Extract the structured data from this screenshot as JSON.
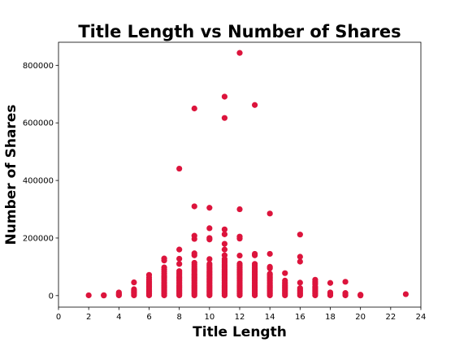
{
  "chart_data": {
    "type": "scatter",
    "title": "Title Length vs Number of Shares",
    "xlabel": "Title Length",
    "ylabel": "Number of Shares",
    "xlim": [
      0,
      24
    ],
    "ylim": [
      -40000,
      880000
    ],
    "xticks": [
      0,
      2,
      4,
      6,
      8,
      10,
      12,
      14,
      16,
      18,
      20,
      22,
      24
    ],
    "yticks": [
      0,
      200000,
      400000,
      600000,
      800000
    ],
    "xtick_labels": [
      "0",
      "2",
      "4",
      "6",
      "8",
      "10",
      "12",
      "14",
      "16",
      "18",
      "20",
      "22",
      "24"
    ],
    "ytick_labels": [
      "0",
      "200000",
      "400000",
      "600000",
      "800000"
    ],
    "grid": false,
    "marker_color": "#dc143c",
    "series": [
      {
        "points": [
          [
            2,
            1000
          ],
          [
            3,
            500
          ],
          [
            3,
            1500
          ],
          [
            4,
            1000
          ],
          [
            4,
            4000
          ],
          [
            4,
            7000
          ],
          [
            4,
            11000
          ],
          [
            5,
            1000
          ],
          [
            5,
            5000
          ],
          [
            5,
            9000
          ],
          [
            5,
            13000
          ],
          [
            5,
            17000
          ],
          [
            5,
            22000
          ],
          [
            5,
            46000
          ],
          [
            6,
            1000
          ],
          [
            6,
            6000
          ],
          [
            6,
            11000
          ],
          [
            6,
            16000
          ],
          [
            6,
            21000
          ],
          [
            6,
            27000
          ],
          [
            6,
            33000
          ],
          [
            6,
            40000
          ],
          [
            6,
            47000
          ],
          [
            6,
            55000
          ],
          [
            6,
            63000
          ],
          [
            6,
            72000
          ],
          [
            7,
            1000
          ],
          [
            7,
            6000
          ],
          [
            7,
            11000
          ],
          [
            7,
            16000
          ],
          [
            7,
            21000
          ],
          [
            7,
            26000
          ],
          [
            7,
            31000
          ],
          [
            7,
            36000
          ],
          [
            7,
            41000
          ],
          [
            7,
            46000
          ],
          [
            7,
            52000
          ],
          [
            7,
            58000
          ],
          [
            7,
            64000
          ],
          [
            7,
            70000
          ],
          [
            7,
            77000
          ],
          [
            7,
            84000
          ],
          [
            7,
            91000
          ],
          [
            7,
            98000
          ],
          [
            7,
            122000
          ],
          [
            7,
            129000
          ],
          [
            8,
            1000
          ],
          [
            8,
            6000
          ],
          [
            8,
            11000
          ],
          [
            8,
            16000
          ],
          [
            8,
            21000
          ],
          [
            8,
            26000
          ],
          [
            8,
            31000
          ],
          [
            8,
            36000
          ],
          [
            8,
            41000
          ],
          [
            8,
            46000
          ],
          [
            8,
            51000
          ],
          [
            8,
            56000
          ],
          [
            8,
            61000
          ],
          [
            8,
            66000
          ],
          [
            8,
            72000
          ],
          [
            8,
            78000
          ],
          [
            8,
            85000
          ],
          [
            8,
            110000
          ],
          [
            8,
            128000
          ],
          [
            8,
            160000
          ],
          [
            8,
            441000
          ],
          [
            9,
            1000
          ],
          [
            9,
            6000
          ],
          [
            9,
            11000
          ],
          [
            9,
            16000
          ],
          [
            9,
            21000
          ],
          [
            9,
            26000
          ],
          [
            9,
            31000
          ],
          [
            9,
            36000
          ],
          [
            9,
            41000
          ],
          [
            9,
            46000
          ],
          [
            9,
            51000
          ],
          [
            9,
            56000
          ],
          [
            9,
            61000
          ],
          [
            9,
            66000
          ],
          [
            9,
            71000
          ],
          [
            9,
            76000
          ],
          [
            9,
            82000
          ],
          [
            9,
            88000
          ],
          [
            9,
            94000
          ],
          [
            9,
            100000
          ],
          [
            9,
            107000
          ],
          [
            9,
            114000
          ],
          [
            9,
            140000
          ],
          [
            9,
            147000
          ],
          [
            9,
            197000
          ],
          [
            9,
            208000
          ],
          [
            9,
            310000
          ],
          [
            9,
            650000
          ],
          [
            10,
            1000
          ],
          [
            10,
            6000
          ],
          [
            10,
            11000
          ],
          [
            10,
            16000
          ],
          [
            10,
            21000
          ],
          [
            10,
            26000
          ],
          [
            10,
            31000
          ],
          [
            10,
            36000
          ],
          [
            10,
            41000
          ],
          [
            10,
            46000
          ],
          [
            10,
            51000
          ],
          [
            10,
            56000
          ],
          [
            10,
            61000
          ],
          [
            10,
            66000
          ],
          [
            10,
            71000
          ],
          [
            10,
            76000
          ],
          [
            10,
            81000
          ],
          [
            10,
            86000
          ],
          [
            10,
            92000
          ],
          [
            10,
            98000
          ],
          [
            10,
            104000
          ],
          [
            10,
            110000
          ],
          [
            10,
            127000
          ],
          [
            10,
            195000
          ],
          [
            10,
            200000
          ],
          [
            10,
            234000
          ],
          [
            10,
            305000
          ],
          [
            11,
            1000
          ],
          [
            11,
            6000
          ],
          [
            11,
            11000
          ],
          [
            11,
            16000
          ],
          [
            11,
            21000
          ],
          [
            11,
            26000
          ],
          [
            11,
            31000
          ],
          [
            11,
            36000
          ],
          [
            11,
            41000
          ],
          [
            11,
            46000
          ],
          [
            11,
            51000
          ],
          [
            11,
            56000
          ],
          [
            11,
            61000
          ],
          [
            11,
            66000
          ],
          [
            11,
            71000
          ],
          [
            11,
            76000
          ],
          [
            11,
            81000
          ],
          [
            11,
            86000
          ],
          [
            11,
            91000
          ],
          [
            11,
            96000
          ],
          [
            11,
            102000
          ],
          [
            11,
            108000
          ],
          [
            11,
            114000
          ],
          [
            11,
            120000
          ],
          [
            11,
            127000
          ],
          [
            11,
            140000
          ],
          [
            11,
            160000
          ],
          [
            11,
            180000
          ],
          [
            11,
            213000
          ],
          [
            11,
            230000
          ],
          [
            11,
            617000
          ],
          [
            11,
            691000
          ],
          [
            12,
            1000
          ],
          [
            12,
            6000
          ],
          [
            12,
            11000
          ],
          [
            12,
            16000
          ],
          [
            12,
            21000
          ],
          [
            12,
            26000
          ],
          [
            12,
            31000
          ],
          [
            12,
            36000
          ],
          [
            12,
            41000
          ],
          [
            12,
            46000
          ],
          [
            12,
            51000
          ],
          [
            12,
            56000
          ],
          [
            12,
            61000
          ],
          [
            12,
            66000
          ],
          [
            12,
            71000
          ],
          [
            12,
            76000
          ],
          [
            12,
            81000
          ],
          [
            12,
            86000
          ],
          [
            12,
            91000
          ],
          [
            12,
            96000
          ],
          [
            12,
            101000
          ],
          [
            12,
            106000
          ],
          [
            12,
            111000
          ],
          [
            12,
            139000
          ],
          [
            12,
            198000
          ],
          [
            12,
            205000
          ],
          [
            12,
            300000
          ],
          [
            12,
            843000
          ],
          [
            13,
            1000
          ],
          [
            13,
            6000
          ],
          [
            13,
            11000
          ],
          [
            13,
            16000
          ],
          [
            13,
            21000
          ],
          [
            13,
            26000
          ],
          [
            13,
            31000
          ],
          [
            13,
            36000
          ],
          [
            13,
            41000
          ],
          [
            13,
            46000
          ],
          [
            13,
            51000
          ],
          [
            13,
            56000
          ],
          [
            13,
            61000
          ],
          [
            13,
            66000
          ],
          [
            13,
            71000
          ],
          [
            13,
            76000
          ],
          [
            13,
            81000
          ],
          [
            13,
            86000
          ],
          [
            13,
            92000
          ],
          [
            13,
            98000
          ],
          [
            13,
            104000
          ],
          [
            13,
            110000
          ],
          [
            13,
            140000
          ],
          [
            13,
            145000
          ],
          [
            13,
            662000
          ],
          [
            14,
            1000
          ],
          [
            14,
            6000
          ],
          [
            14,
            11000
          ],
          [
            14,
            16000
          ],
          [
            14,
            21000
          ],
          [
            14,
            26000
          ],
          [
            14,
            31000
          ],
          [
            14,
            36000
          ],
          [
            14,
            41000
          ],
          [
            14,
            46000
          ],
          [
            14,
            51000
          ],
          [
            14,
            56000
          ],
          [
            14,
            61000
          ],
          [
            14,
            66000
          ],
          [
            14,
            71000
          ],
          [
            14,
            76000
          ],
          [
            14,
            95000
          ],
          [
            14,
            100000
          ],
          [
            14,
            145000
          ],
          [
            14,
            285000
          ],
          [
            15,
            1000
          ],
          [
            15,
            6000
          ],
          [
            15,
            11000
          ],
          [
            15,
            16000
          ],
          [
            15,
            21000
          ],
          [
            15,
            26000
          ],
          [
            15,
            31000
          ],
          [
            15,
            36000
          ],
          [
            15,
            41000
          ],
          [
            15,
            46000
          ],
          [
            15,
            52000
          ],
          [
            15,
            78000
          ],
          [
            16,
            1000
          ],
          [
            16,
            6000
          ],
          [
            16,
            11000
          ],
          [
            16,
            16000
          ],
          [
            16,
            21000
          ],
          [
            16,
            26000
          ],
          [
            16,
            45000
          ],
          [
            16,
            118000
          ],
          [
            16,
            135000
          ],
          [
            16,
            212000
          ],
          [
            17,
            1000
          ],
          [
            17,
            6000
          ],
          [
            17,
            11000
          ],
          [
            17,
            16000
          ],
          [
            17,
            21000
          ],
          [
            17,
            26000
          ],
          [
            17,
            31000
          ],
          [
            17,
            40000
          ],
          [
            17,
            47000
          ],
          [
            17,
            55000
          ],
          [
            18,
            1000
          ],
          [
            18,
            6000
          ],
          [
            18,
            11000
          ],
          [
            18,
            44000
          ],
          [
            19,
            1000
          ],
          [
            19,
            5000
          ],
          [
            19,
            9000
          ],
          [
            19,
            48000
          ],
          [
            20,
            500
          ],
          [
            20,
            3000
          ],
          [
            23,
            5000
          ]
        ]
      }
    ]
  }
}
